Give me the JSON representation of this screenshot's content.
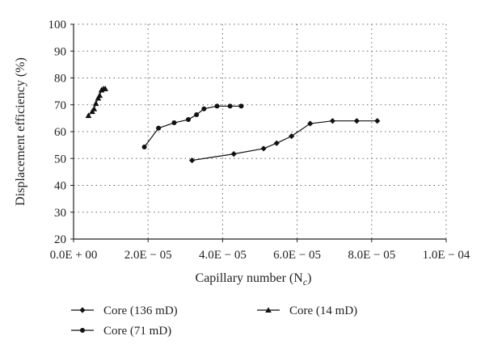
{
  "chart_data": {
    "type": "line",
    "title": "",
    "xlabel": "Capillary number (N",
    "xlabel_sub": "c",
    "xlabel_close": ")",
    "ylabel": "Displacement efficiency (%)",
    "xlim": [
      0,
      0.0001
    ],
    "ylim": [
      20,
      100
    ],
    "x_ticks": [
      0,
      2e-05,
      4e-05,
      6e-05,
      8e-05,
      0.0001
    ],
    "x_tick_labels": [
      "0.0E + 00",
      "2.0E − 05",
      "4.0E − 05",
      "6.0E − 05",
      "8.0E − 05",
      "1.0E − 04"
    ],
    "y_ticks": [
      20,
      30,
      40,
      50,
      60,
      70,
      80,
      90,
      100
    ],
    "y_tick_labels": [
      "20",
      "30",
      "40",
      "50",
      "60",
      "70",
      "80",
      "90",
      "100"
    ],
    "grid": "dotted",
    "legend_position": "bottom",
    "series": [
      {
        "name": "Core (136 mD)",
        "marker": "diamond",
        "x": [
          3.18e-05,
          4.3e-05,
          5.1e-05,
          5.45e-05,
          5.85e-05,
          6.35e-05,
          6.95e-05,
          7.6e-05,
          8.15e-05
        ],
        "y": [
          49.3,
          51.7,
          53.7,
          55.7,
          58.3,
          63.0,
          64.0,
          64.0,
          64.0
        ]
      },
      {
        "name": "Core (71 mD)",
        "marker": "circle",
        "x": [
          1.9e-05,
          2.28e-05,
          2.7e-05,
          3.08e-05,
          3.3e-05,
          3.5e-05,
          3.85e-05,
          4.2e-05,
          4.5e-05
        ],
        "y": [
          54.3,
          61.3,
          63.3,
          64.5,
          66.3,
          68.5,
          69.5,
          69.5,
          69.5
        ]
      },
      {
        "name": "Core (14 mD)",
        "marker": "triangle",
        "x": [
          4e-06,
          5e-06,
          5.5e-06,
          6e-06,
          6.6e-06,
          7e-06,
          7.5e-06,
          8e-06,
          8.5e-06
        ],
        "y": [
          66.0,
          67.5,
          68.5,
          70.5,
          72.5,
          73.5,
          75.5,
          76.0,
          76.0
        ]
      }
    ]
  }
}
